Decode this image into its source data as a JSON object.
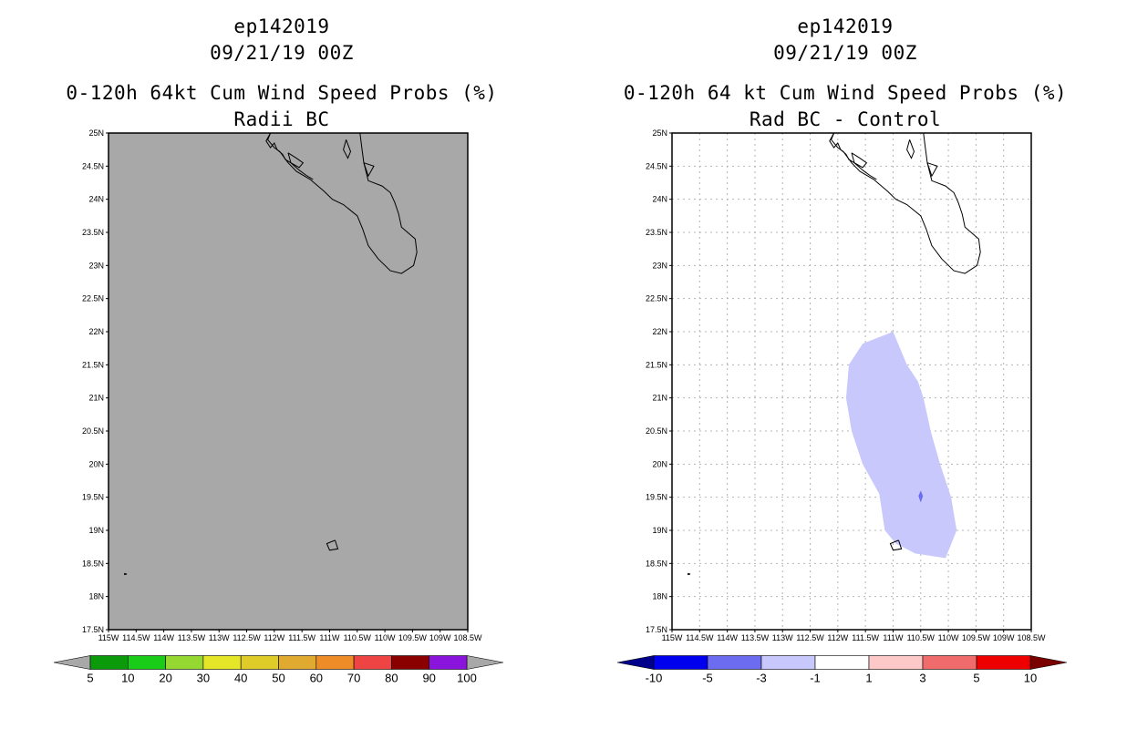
{
  "chart_data": [
    {
      "type": "map",
      "storm_id": "ep142019",
      "date": "09/21/19 00Z",
      "title": "0-120h 64kt Cum Wind Speed Probs (%)",
      "subtitle": "Radii BC",
      "background": "#a8a8a8",
      "gridlines": false,
      "xlim": [
        -115,
        -108.5
      ],
      "ylim": [
        17.5,
        25
      ],
      "x_ticks": [
        "115W",
        "114.5W",
        "114W",
        "113.5W",
        "113W",
        "112.5W",
        "112W",
        "111.5W",
        "111W",
        "110.5W",
        "110W",
        "109.5W",
        "109W",
        "108.5W"
      ],
      "y_ticks": [
        "17.5N",
        "18N",
        "18.5N",
        "19N",
        "19.5N",
        "20N",
        "20.5N",
        "21N",
        "21.5N",
        "22N",
        "22.5N",
        "23N",
        "23.5N",
        "24N",
        "24.5N",
        "25N"
      ],
      "colorbar": {
        "labels": [
          "5",
          "10",
          "20",
          "30",
          "40",
          "50",
          "60",
          "70",
          "80",
          "90",
          "100"
        ],
        "colors": [
          "#a8a8a8",
          "#0a9a0a",
          "#18cc18",
          "#96d832",
          "#e6e628",
          "#e0cc28",
          "#e0aa30",
          "#ee8c28",
          "#ee4444",
          "#8a0000",
          "#8a14dc",
          "#a8a8a8"
        ]
      },
      "fields": []
    },
    {
      "type": "map",
      "storm_id": "ep142019",
      "date": "09/21/19 00Z",
      "title": "0-120h 64 kt Cum Wind Speed Probs (%)",
      "subtitle": "Rad BC - Control",
      "background": "#ffffff",
      "gridlines": true,
      "xlim": [
        -115,
        -108.5
      ],
      "ylim": [
        17.5,
        25
      ],
      "x_ticks": [
        "115W",
        "114.5W",
        "114W",
        "113.5W",
        "113W",
        "112.5W",
        "112W",
        "111.5W",
        "111W",
        "110.5W",
        "110W",
        "109.5W",
        "109W",
        "108.5W"
      ],
      "y_ticks": [
        "17.5N",
        "18N",
        "18.5N",
        "19N",
        "19.5N",
        "20N",
        "20.5N",
        "21N",
        "21.5N",
        "22N",
        "22.5N",
        "23N",
        "23.5N",
        "24N",
        "24.5N",
        "25N"
      ],
      "colorbar": {
        "labels": [
          "-10",
          "-5",
          "-3",
          "-1",
          "1",
          "3",
          "5",
          "10"
        ],
        "colors": [
          "#00008a",
          "#0000ee",
          "#6c6cf0",
          "#c8c8fc",
          "#ffffff",
          "#fcc8c8",
          "#f06c6c",
          "#ee0000",
          "#7a0000"
        ]
      },
      "fields": [
        {
          "name": "difference -3 to -1",
          "color": "#c8c8fc",
          "lonlat": [
            [
              -111.0,
              22.0
            ],
            [
              -111.55,
              21.82
            ],
            [
              -111.8,
              21.5
            ],
            [
              -111.85,
              21.0
            ],
            [
              -111.75,
              20.5
            ],
            [
              -111.55,
              20.0
            ],
            [
              -111.25,
              19.55
            ],
            [
              -111.15,
              19.0
            ],
            [
              -110.95,
              18.8
            ],
            [
              -110.6,
              18.65
            ],
            [
              -110.05,
              18.58
            ],
            [
              -109.85,
              19.0
            ],
            [
              -109.95,
              19.5
            ],
            [
              -110.15,
              20.0
            ],
            [
              -110.32,
              20.5
            ],
            [
              -110.45,
              21.0
            ],
            [
              -110.55,
              21.25
            ],
            [
              -110.75,
              21.5
            ]
          ]
        },
        {
          "name": "difference -5 to -3",
          "color": "#6c6cf0",
          "lonlat": [
            [
              -110.5,
              19.6
            ],
            [
              -110.46,
              19.52
            ],
            [
              -110.5,
              19.42
            ],
            [
              -110.54,
              19.52
            ]
          ]
        }
      ]
    }
  ]
}
